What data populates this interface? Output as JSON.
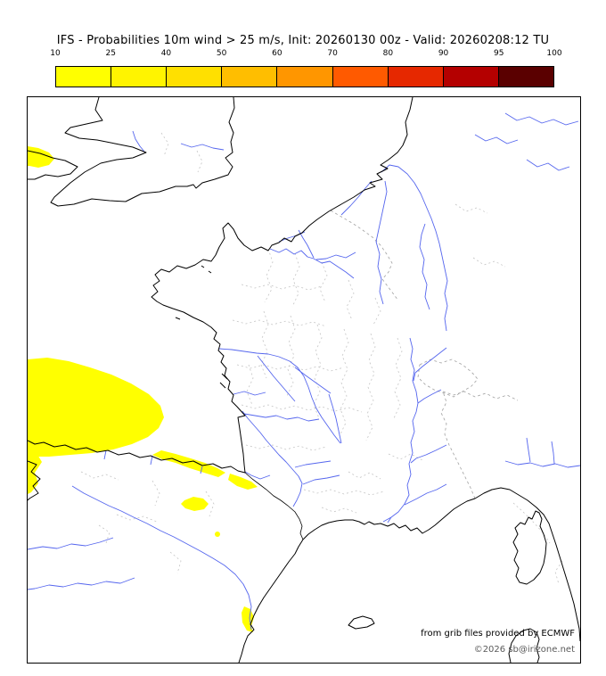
{
  "header": {
    "title": "IFS - Probabilities 10m wind > 25 m/s, Init: 20260130 00z - Valid: 20260208:12 TU"
  },
  "colorbar": {
    "tick_labels": [
      "10",
      "25",
      "40",
      "50",
      "60",
      "70",
      "80",
      "90",
      "95",
      "100"
    ],
    "cell_colors": [
      "#ffff00",
      "#fff400",
      "#ffe000",
      "#ffbe00",
      "#ff9600",
      "#ff5a00",
      "#e62800",
      "#b40000",
      "#5a0000"
    ]
  },
  "map": {
    "region": "Western Europe / France",
    "colors": {
      "probability_fill": "#ffff00",
      "river": "#5566ee",
      "coastline": "#000000",
      "department_boundary": "#c4c4c4",
      "country_border": "#a0a0a0"
    },
    "credits": {
      "source": "from grib files provided by ECMWF",
      "copyright": "©2026 sb@irizone.net"
    }
  }
}
